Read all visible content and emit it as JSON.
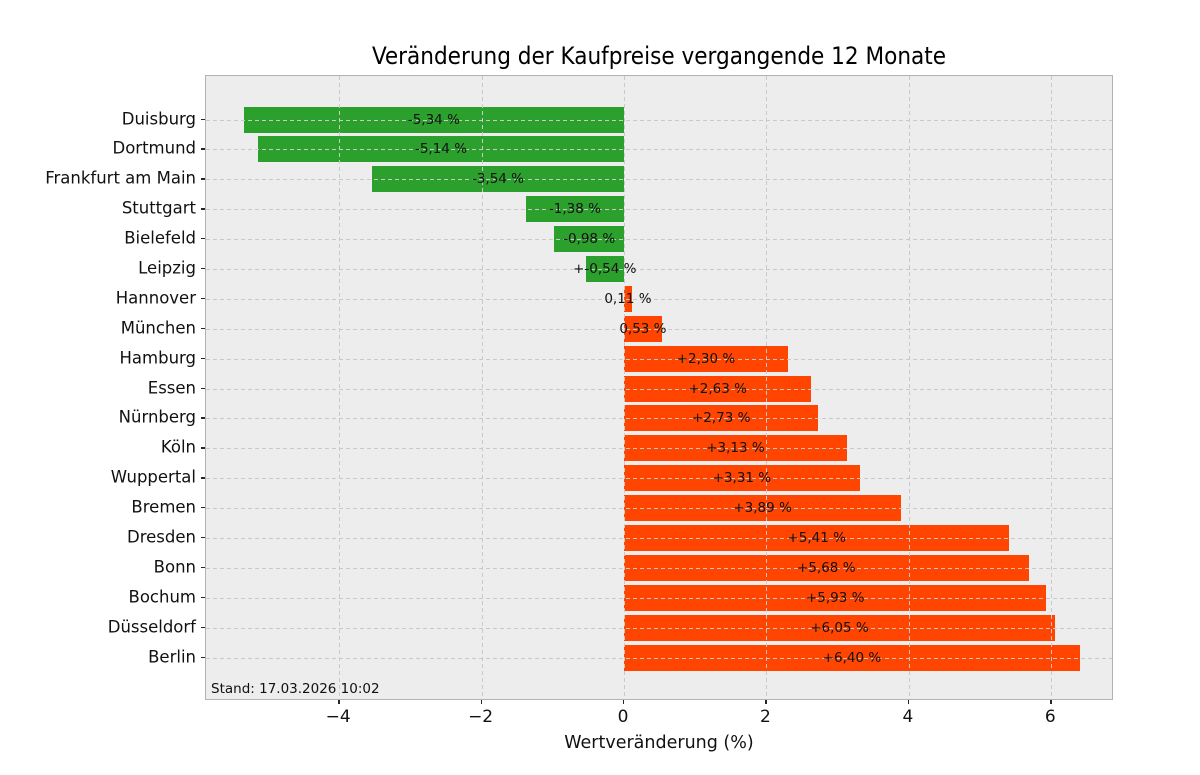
{
  "chart_data": {
    "type": "bar",
    "orientation": "horizontal",
    "title": "Veränderung der Kaufpreise vergangende 12 Monate",
    "xlabel": "Wertveränderung (%)",
    "note": "Stand: 17.03.2026 10:02",
    "categories": [
      "Duisburg",
      "Dortmund",
      "Frankfurt am Main",
      "Stuttgart",
      "Bielefeld",
      "Leipzig",
      "Hannover",
      "München",
      "Hamburg",
      "Essen",
      "Nürnberg",
      "Köln",
      "Wuppertal",
      "Bremen",
      "Dresden",
      "Bonn",
      "Bochum",
      "Düsseldorf",
      "Berlin"
    ],
    "values": [
      -5.34,
      -5.14,
      -3.54,
      -1.38,
      -0.98,
      -0.54,
      0.11,
      0.53,
      2.3,
      2.63,
      2.73,
      3.13,
      3.31,
      3.89,
      5.41,
      5.68,
      5.93,
      6.05,
      6.4
    ],
    "bar_labels": [
      "-5,34 %",
      "-5,14 %",
      "-3,54 %",
      "-1,38 %",
      "-0,98 %",
      "+-0,54 %",
      "0,11 %",
      "0,53 %",
      "+2,30 %",
      "+2,63 %",
      "+2,73 %",
      "+3,13 %",
      "+3,31 %",
      "+3,89 %",
      "+5,41 %",
      "+5,68 %",
      "+5,93 %",
      "+6,05 %",
      "+6,40 %"
    ],
    "xlim": [
      -5.87,
      6.88
    ],
    "xticks": [
      -4,
      -2,
      0,
      2,
      4,
      6
    ],
    "xtick_labels": [
      "−4",
      "−2",
      "0",
      "2",
      "4",
      "6"
    ],
    "grid": true,
    "legend": "none",
    "colors": {
      "negative_bar": "#2ca02c",
      "positive_bar": "#ff4500",
      "plot_background": "#ededed",
      "gridline": "#c9c9c9",
      "axis_spine": "#b3b3b3",
      "text": "#111111"
    }
  }
}
